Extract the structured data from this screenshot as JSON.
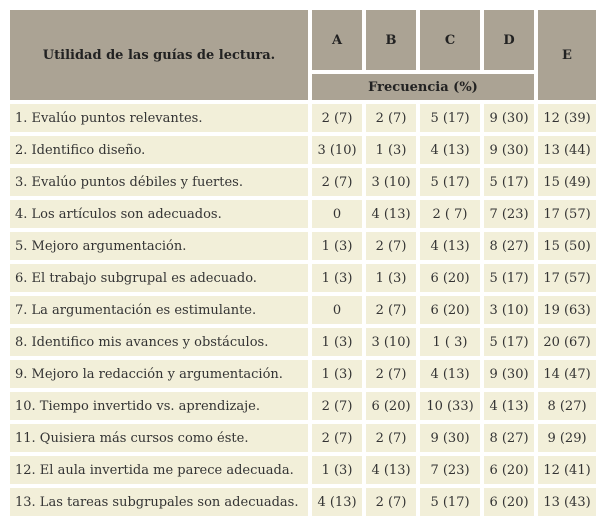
{
  "header": {
    "title": "Utilidad de las guías de lectura.",
    "col_a": "A",
    "col_b": "B",
    "col_c": "C",
    "col_d": "D",
    "col_e": "E",
    "subheader": "Frecuencia (%)"
  },
  "rows": [
    {
      "label": "1. Evalúo puntos relevantes.",
      "a": "2 (7)",
      "b": "2 (7)",
      "c": "5 (17)",
      "d": "9 (30)",
      "e": "12 (39)"
    },
    {
      "label": "2. Identifico diseño.",
      "a": "3 (10)",
      "b": "1 (3)",
      "c": "4 (13)",
      "d": "9 (30)",
      "e": "13 (44)"
    },
    {
      "label": "3. Evalúo puntos débiles y fuertes.",
      "a": "2 (7)",
      "b": "3 (10)",
      "c": "5 (17)",
      "d": "5 (17)",
      "e": "15 (49)"
    },
    {
      "label": "4. Los artículos son adecuados.",
      "a": "0",
      "b": "4 (13)",
      "c": "2 ( 7)",
      "d": "7 (23)",
      "e": "17 (57)"
    },
    {
      "label": "5. Mejoro argumentación.",
      "a": "1 (3)",
      "b": "2 (7)",
      "c": "4 (13)",
      "d": "8 (27)",
      "e": "15 (50)"
    },
    {
      "label": "6. El trabajo subgrupal es adecuado.",
      "a": "1 (3)",
      "b": "1 (3)",
      "c": "6 (20)",
      "d": "5 (17)",
      "e": "17 (57)"
    },
    {
      "label": "7. La argumentación es estimulante.",
      "a": "0",
      "b": "2 (7)",
      "c": "6 (20)",
      "d": "3 (10)",
      "e": "19 (63)"
    },
    {
      "label": "8. Identifico mis avances y obstáculos.",
      "a": "1 (3)",
      "b": "3 (10)",
      "c": "1 ( 3)",
      "d": "5 (17)",
      "e": "20 (67)"
    },
    {
      "label": "9. Mejoro la redacción y argumentación.",
      "a": "1 (3)",
      "b": "2 (7)",
      "c": "4 (13)",
      "d": "9 (30)",
      "e": "14 (47)"
    },
    {
      "label": "10. Tiempo invertido vs. aprendizaje.",
      "a": "2 (7)",
      "b": "6 (20)",
      "c": "10 (33)",
      "d": "4 (13)",
      "e": "8 (27)"
    },
    {
      "label": "11. Quisiera más cursos como éste.",
      "a": "2 (7)",
      "b": "2 (7)",
      "c": "9 (30)",
      "d": "8 (27)",
      "e": "9 (29)"
    },
    {
      "label": "12. El aula invertida me parece adecuada.",
      "a": "1 (3)",
      "b": "4 (13)",
      "c": "7 (23)",
      "d": "6 (20)",
      "e": "12 (41)"
    },
    {
      "label": "13. Las tareas subgrupales son adecuadas.",
      "a": "4 (13)",
      "b": "2 (7)",
      "c": "5 (17)",
      "d": "6 (20)",
      "e": "13 (43)"
    }
  ]
}
